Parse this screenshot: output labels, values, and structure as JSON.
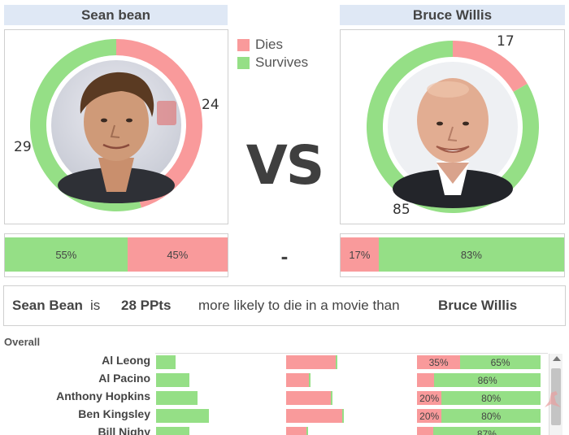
{
  "legend": [
    {
      "label": "Dies",
      "color": "#f99a9b"
    },
    {
      "label": "Survives",
      "color": "#95df86"
    }
  ],
  "vs_label": "VS",
  "dash_label": "-",
  "actors": [
    {
      "name": "Sean bean",
      "dies": 24,
      "survives": 29,
      "dies_pct": "45%",
      "survives_pct": "55%"
    },
    {
      "name": "Bruce Willis",
      "dies": 17,
      "survives": 85,
      "dies_pct": "17%",
      "survives_pct": "83%"
    }
  ],
  "statement": {
    "actor1": "Sean Bean",
    "is": "is",
    "value": "28 PPts",
    "text": "more likely to die in a movie than",
    "actor2": "Bruce Willis"
  },
  "overall_label": "Overall",
  "chart_data": [
    {
      "type": "pie",
      "title": "Sean bean",
      "categories": [
        "Dies",
        "Survives"
      ],
      "values": [
        24,
        29
      ],
      "colors": [
        "#f99a9b",
        "#95df86"
      ]
    },
    {
      "type": "pie",
      "title": "Bruce Willis",
      "categories": [
        "Dies",
        "Survives"
      ],
      "values": [
        17,
        85
      ],
      "colors": [
        "#f99a9b",
        "#95df86"
      ]
    },
    {
      "type": "bar",
      "title": "Sean bean",
      "categories": [
        "Survives",
        "Dies"
      ],
      "values": [
        55,
        45
      ],
      "unit": "%"
    },
    {
      "type": "bar",
      "title": "Bruce Willis",
      "categories": [
        "Dies",
        "Survives"
      ],
      "values": [
        17,
        83
      ],
      "unit": "%"
    },
    {
      "type": "table",
      "title": "Overall",
      "rows": [
        {
          "actor": "Al Leong",
          "survive_bar": 0.16,
          "die_bar": 0.42,
          "dies_pct": 35,
          "survives_pct": 65,
          "dies_label": "35%",
          "survives_label": "65%"
        },
        {
          "actor": "Al Pacino",
          "survive_bar": 0.27,
          "die_bar": 0.2,
          "dies_pct": 14,
          "survives_pct": 86,
          "dies_label": "",
          "survives_label": "86%"
        },
        {
          "actor": "Anthony Hopkins",
          "survive_bar": 0.34,
          "die_bar": 0.38,
          "dies_pct": 20,
          "survives_pct": 80,
          "dies_label": "20%",
          "survives_label": "80%"
        },
        {
          "actor": "Ben Kingsley",
          "survive_bar": 0.43,
          "die_bar": 0.47,
          "dies_pct": 20,
          "survives_pct": 80,
          "dies_label": "20%",
          "survives_label": "80%"
        },
        {
          "actor": "Bill Nighy",
          "survive_bar": 0.27,
          "die_bar": 0.18,
          "dies_pct": 13,
          "survives_pct": 87,
          "dies_label": "",
          "survives_label": "87%"
        }
      ]
    }
  ]
}
